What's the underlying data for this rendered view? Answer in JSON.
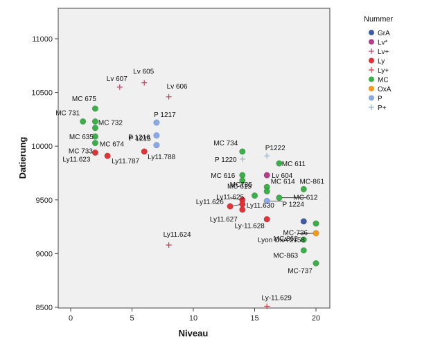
{
  "chart_data": {
    "type": "scatter",
    "xlabel": "Niveau",
    "ylabel": "Datierung",
    "xlim": [
      -1,
      21
    ],
    "ylim": [
      8500,
      11300
    ],
    "xticks": [
      0,
      5,
      10,
      15,
      20
    ],
    "yticks": [
      8500,
      9000,
      9500,
      10000,
      10500,
      11000
    ],
    "grid": false,
    "legend_title": "Nummer",
    "legend_position": "right",
    "series": [
      {
        "name": "GrA",
        "marker": "circle",
        "color": "#3f5aa8",
        "points": [
          {
            "x": 19,
            "y": 9300,
            "label": ""
          }
        ]
      },
      {
        "name": "Lv*",
        "marker": "circle",
        "color": "#b83c8c",
        "points": [
          {
            "x": 16,
            "y": 9730,
            "label": "Lv 604"
          }
        ]
      },
      {
        "name": "Lv+",
        "marker": "plus",
        "color": "#c0415f",
        "points": [
          {
            "x": 4,
            "y": 10550,
            "label": "Lv 607"
          },
          {
            "x": 6,
            "y": 10590,
            "label": "Lv 605"
          },
          {
            "x": 8,
            "y": 10460,
            "label": "Lv 606"
          }
        ]
      },
      {
        "name": "Ly",
        "marker": "circle",
        "color": "#e03338",
        "points": [
          {
            "x": 2,
            "y": 9940,
            "label": "MC 733"
          },
          {
            "x": 3,
            "y": 9910,
            "label": "Ly11.787"
          },
          {
            "x": 6,
            "y": 9950,
            "label": "Ly11.788"
          },
          {
            "x": 13,
            "y": 9440,
            "label": "Ly11.625"
          },
          {
            "x": 14,
            "y": 9500,
            "label": "Ly11.626"
          },
          {
            "x": 14,
            "y": 9460,
            "label": "Ly11.630"
          },
          {
            "x": 14,
            "y": 9410,
            "label": "Ly11.627"
          },
          {
            "x": 16,
            "y": 9320,
            "label": "Ly-11.628"
          }
        ]
      },
      {
        "name": "Ly+",
        "marker": "plus",
        "color": "#e03338",
        "points": [
          {
            "x": 8,
            "y": 9080,
            "label": "Ly11.624"
          },
          {
            "x": 16,
            "y": 8510,
            "label": "Ly-11.629"
          }
        ]
      },
      {
        "name": "MC",
        "marker": "circle",
        "color": "#3dae49",
        "points": [
          {
            "x": 1,
            "y": 10230,
            "label": "MC 731"
          },
          {
            "x": 2,
            "y": 10350,
            "label": "MC 675"
          },
          {
            "x": 2,
            "y": 10230,
            "label": "MC 732"
          },
          {
            "x": 2,
            "y": 10170,
            "label": ""
          },
          {
            "x": 2,
            "y": 10090,
            "label": "MC 635"
          },
          {
            "x": 2,
            "y": 10030,
            "label": "MC 674"
          },
          {
            "x": 14,
            "y": 9950,
            "label": "MC 734"
          },
          {
            "x": 14,
            "y": 9730,
            "label": "MC 616"
          },
          {
            "x": 14,
            "y": 9680,
            "label": "MC735"
          },
          {
            "x": 15,
            "y": 9540,
            "label": "MC 615"
          },
          {
            "x": 16,
            "y": 9620,
            "label": ""
          },
          {
            "x": 16,
            "y": 9580,
            "label": "MC 614"
          },
          {
            "x": 17,
            "y": 9840,
            "label": "MC 611"
          },
          {
            "x": 17,
            "y": 9520,
            "label": "MC 612"
          },
          {
            "x": 19,
            "y": 9600,
            "label": "MC-861"
          },
          {
            "x": 20,
            "y": 9280,
            "label": ""
          },
          {
            "x": 19,
            "y": 9130,
            "label": "MC 862"
          },
          {
            "x": 19,
            "y": 9030,
            "label": "MC-863"
          },
          {
            "x": 20,
            "y": 8910,
            "label": "MC-737"
          }
        ]
      },
      {
        "name": "OxA",
        "marker": "circle",
        "color": "#f29a1b",
        "points": [
          {
            "x": 20,
            "y": 9190,
            "label": "Lyon OxA 2158"
          }
        ]
      },
      {
        "name": "P",
        "marker": "circle",
        "color": "#88a8e6",
        "points": [
          {
            "x": 7,
            "y": 10220,
            "label": "P 1217"
          },
          {
            "x": 7,
            "y": 10100,
            "label": "P 1216"
          },
          {
            "x": 7,
            "y": 10010,
            "label": "P 1215"
          },
          {
            "x": 16,
            "y": 9490,
            "label": "P 1224"
          }
        ]
      },
      {
        "name": "P+",
        "marker": "plus",
        "color": "#8fb0c8",
        "points": [
          {
            "x": 14,
            "y": 9880,
            "label": "P 1220"
          },
          {
            "x": 16,
            "y": 9910,
            "label": "P1222"
          }
        ]
      }
    ],
    "annotations": [
      {
        "text": "MC-736",
        "x": 19,
        "y": 9230
      }
    ]
  }
}
